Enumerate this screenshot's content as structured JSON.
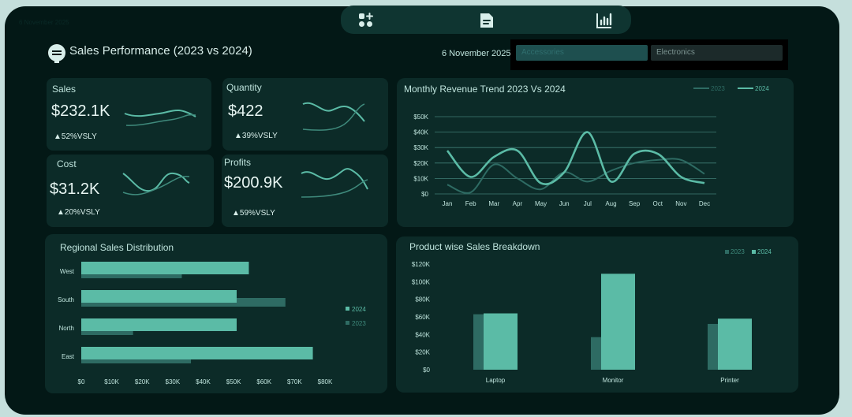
{
  "header": {
    "corner_text": "6 November 2025",
    "title": "Sales Performance (2023 vs 2024)",
    "date": "6 November 2025",
    "nav_icons": [
      "dashboard-add-icon",
      "document-icon",
      "bar-chart-icon"
    ]
  },
  "slicer": {
    "items": [
      {
        "label": "Accessories",
        "selected": true
      },
      {
        "label": "Electronics",
        "selected": false
      }
    ]
  },
  "kpis": {
    "sales": {
      "label": "Sales",
      "value": "$232.1K",
      "delta": "▲52%VSLY"
    },
    "quantity": {
      "label": "Quantity",
      "value": "$422",
      "delta": "▲39%VSLY"
    },
    "cost": {
      "label": "Cost",
      "value": "$31.2K",
      "delta": "▲20%VSLY"
    },
    "profits": {
      "label": "Profits",
      "value": "$200.9K",
      "delta": "▲59%VSLY"
    }
  },
  "colors": {
    "series_2024": "#5bbba6",
    "series_2023": "#2e6b63",
    "background": "#031816",
    "card": "#0c2b28"
  },
  "chart_data": [
    {
      "type": "line",
      "title": "Monthly Revenue Trend 2023 Vs 2024",
      "categories": [
        "Jan",
        "Feb",
        "Mar",
        "Apr",
        "May",
        "Jun",
        "Jul",
        "Aug",
        "Sep",
        "Oct",
        "Nov",
        "Dec"
      ],
      "series": [
        {
          "name": "2023",
          "values": [
            6,
            1,
            19,
            10,
            3,
            14,
            8,
            15,
            20,
            22,
            22,
            13
          ]
        },
        {
          "name": "2024",
          "values": [
            28,
            11,
            24,
            28,
            7,
            14,
            40,
            8,
            26,
            26,
            11,
            7
          ]
        }
      ],
      "yticks": [
        "$0",
        "$10K",
        "$20K",
        "$30K",
        "$40K",
        "$50K"
      ],
      "ylim": [
        0,
        50
      ],
      "legend_position": "top-right",
      "grid": true
    },
    {
      "type": "bar",
      "orientation": "horizontal",
      "title": "Regional Sales Distribution",
      "categories": [
        "West",
        "South",
        "North",
        "East"
      ],
      "series": [
        {
          "name": "2024",
          "values": [
            55,
            51,
            51,
            76
          ]
        },
        {
          "name": "2023",
          "values": [
            33,
            67,
            17,
            36
          ]
        }
      ],
      "xticks": [
        "$0",
        "$10K",
        "$20K",
        "$30K",
        "$40K",
        "$50K",
        "$60K",
        "$70K",
        "$80K"
      ],
      "xlim": [
        0,
        80
      ],
      "legend_position": "right"
    },
    {
      "type": "bar",
      "title": "Product wise Sales Breakdown",
      "categories": [
        "Laptop",
        "Monitor",
        "Printer"
      ],
      "series": [
        {
          "name": "2023",
          "values": [
            63,
            37,
            52
          ]
        },
        {
          "name": "2024",
          "values": [
            64,
            109,
            58
          ]
        }
      ],
      "yticks": [
        "$0",
        "$20K",
        "$40K",
        "$60K",
        "$80K",
        "$100K",
        "$120K"
      ],
      "ylim": [
        0,
        120
      ],
      "legend_position": "top-right"
    }
  ]
}
